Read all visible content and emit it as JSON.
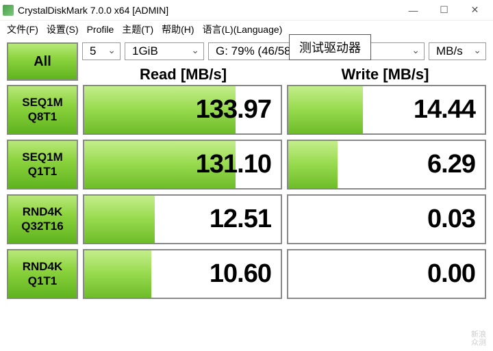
{
  "window": {
    "title": "CrystalDiskMark 7.0.0 x64 [ADMIN]"
  },
  "menu": {
    "file": "文件(F)",
    "settings": "设置(S)",
    "profile": "Profile",
    "theme": "主题(T)",
    "help": "帮助(H)",
    "language": "语言(L)(Language)"
  },
  "controls": {
    "all_label": "All",
    "count": "5",
    "size": "1GiB",
    "drive": "G: 79% (46/58",
    "unit": "MB/s",
    "tooltip": "测试驱动器"
  },
  "headers": {
    "read": "Read [MB/s]",
    "write": "Write [MB/s]"
  },
  "rows": [
    {
      "l1": "SEQ1M",
      "l2": "Q8T1",
      "read": "133.97",
      "rpct": 77,
      "write": "14.44",
      "wpct": 38
    },
    {
      "l1": "SEQ1M",
      "l2": "Q1T1",
      "read": "131.10",
      "rpct": 77,
      "write": "6.29",
      "wpct": 25
    },
    {
      "l1": "RND4K",
      "l2": "Q32T16",
      "read": "12.51",
      "rpct": 36,
      "write": "0.03",
      "wpct": 0
    },
    {
      "l1": "RND4K",
      "l2": "Q1T1",
      "read": "10.60",
      "rpct": 34,
      "write": "0.00",
      "wpct": 0
    }
  ],
  "colors": {
    "grad_top": "#b8e87a",
    "grad_mid": "#8dd43f",
    "grad_bot": "#5fb31f",
    "border": "#888888"
  },
  "watermark": {
    "l1": "新浪",
    "l2": "众测"
  }
}
